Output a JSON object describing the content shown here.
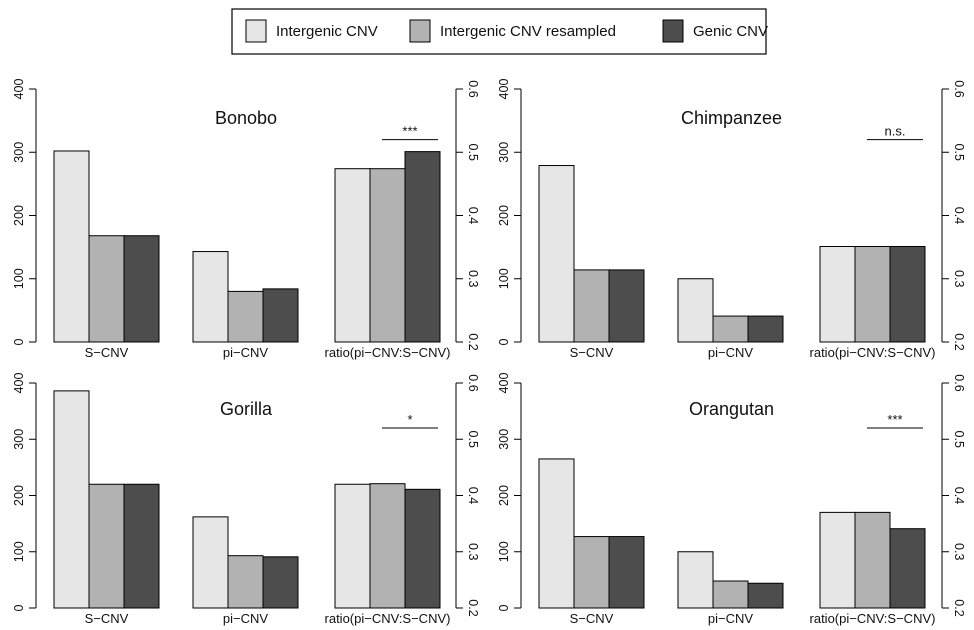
{
  "chart_data": {
    "type": "bar",
    "legend": [
      {
        "label": "Intergenic CNV",
        "color": "#e6e6e6"
      },
      {
        "label": "Intergenic CNV resampled",
        "color": "#b2b2b2"
      },
      {
        "label": "Genic CNV",
        "color": "#4d4d4d"
      }
    ],
    "categories": [
      "S−CNV",
      "pi−CNV",
      "ratio(pi−CNV:S−CNV)"
    ],
    "left_axis": {
      "ylim": [
        0,
        400
      ],
      "ticks": [
        "0",
        "100",
        "200",
        "300",
        "400"
      ]
    },
    "right_axis": {
      "ylim": [
        0.2,
        0.6
      ],
      "ticks": [
        "0.2",
        "0.3",
        "0.4",
        "0.5",
        "0.6"
      ]
    },
    "panels": [
      {
        "title": "Bonobo",
        "scnv": [
          302,
          168,
          168
        ],
        "picnv": [
          143,
          80,
          84
        ],
        "ratio": [
          0.474,
          0.474,
          0.501
        ],
        "significance": "***"
      },
      {
        "title": "Chimpanzee",
        "scnv": [
          279,
          114,
          114
        ],
        "picnv": [
          100,
          41,
          41
        ],
        "ratio": [
          0.351,
          0.351,
          0.351
        ],
        "significance": "n.s."
      },
      {
        "title": "Gorilla",
        "scnv": [
          386,
          220,
          220
        ],
        "picnv": [
          162,
          93,
          91
        ],
        "ratio": [
          0.42,
          0.421,
          0.411
        ],
        "significance": "*"
      },
      {
        "title": "Orangutan",
        "scnv": [
          265,
          127,
          127
        ],
        "picnv": [
          100,
          48,
          44
        ],
        "ratio": [
          0.37,
          0.37,
          0.341
        ],
        "significance": "***"
      }
    ]
  }
}
